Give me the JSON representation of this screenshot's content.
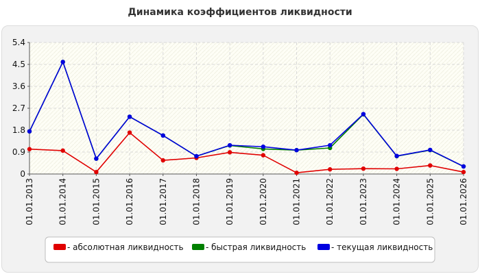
{
  "chart_data": {
    "type": "line",
    "title": "Динамика коэффициентов ликвидности",
    "categories": [
      "01.01.2013",
      "01.01.2014",
      "01.01.2015",
      "01.01.2016",
      "01.01.2017",
      "01.01.2018",
      "01.01.2019",
      "01.01.2020",
      "01.01.2021",
      "01.01.2022",
      "01.01.2023",
      "01.01.2024",
      "01.01.2025",
      "01.01.2026"
    ],
    "yticks": [
      "0",
      "0.9",
      "1.8",
      "2.7",
      "3.6",
      "4.5",
      "5.4"
    ],
    "ylim": [
      0,
      5.4
    ],
    "grid": true,
    "legend_position": "bottom",
    "series": [
      {
        "name": "- абсолютная ликвидность",
        "color": "#e00000",
        "values": [
          1.02,
          0.96,
          0.08,
          1.7,
          0.56,
          0.66,
          0.89,
          0.77,
          0.05,
          0.19,
          0.22,
          0.21,
          0.35,
          0.08
        ]
      },
      {
        "name": "- быстрая ликвидность",
        "color": "#008000",
        "values": [
          1.75,
          4.6,
          0.63,
          2.35,
          1.58,
          0.73,
          1.17,
          1.03,
          0.98,
          1.07,
          2.45,
          0.73,
          0.98,
          0.31
        ]
      },
      {
        "name": "- текущая ликвидность",
        "color": "#0000e0",
        "values": [
          1.75,
          4.6,
          0.63,
          2.35,
          1.58,
          0.73,
          1.18,
          1.12,
          0.98,
          1.18,
          2.46,
          0.74,
          0.99,
          0.31
        ]
      }
    ]
  }
}
